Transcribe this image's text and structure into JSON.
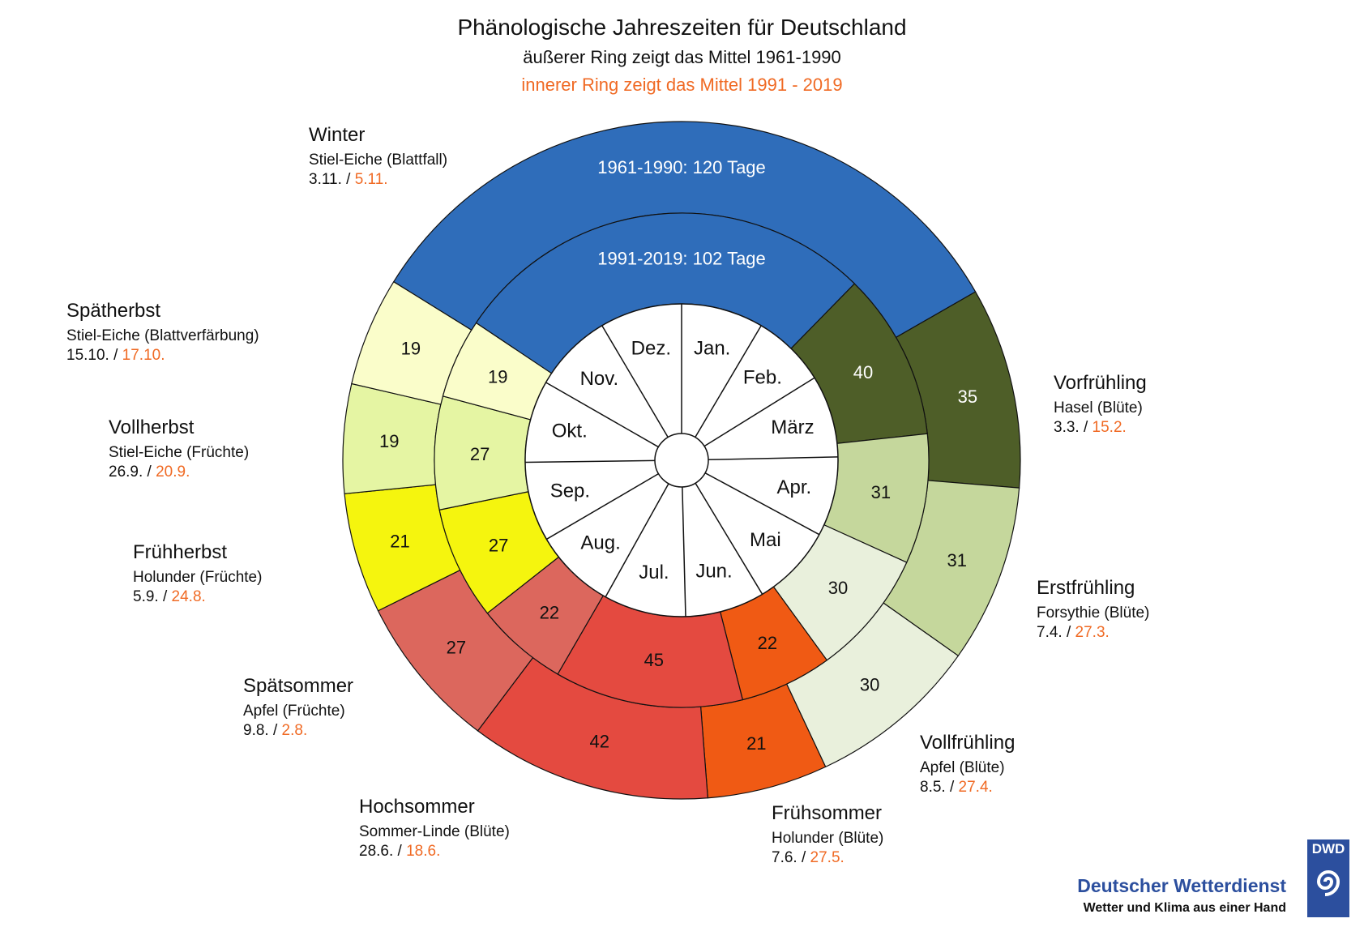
{
  "chart_data": {
    "type": "pie",
    "subtype": "phenological-clock (two concentric rings, clockwise from 1 January at top)",
    "title": "Phänologische Jahreszeiten für Deutschland",
    "subtitle_outer": "äußerer Ring zeigt das Mittel 1961-1990",
    "subtitle_inner": "innerer Ring zeigt das Mittel 1991 - 2019",
    "months": [
      "Jan.",
      "Feb.",
      "März",
      "Apr.",
      "Mai",
      "Jun.",
      "Jul.",
      "Aug.",
      "Sep.",
      "Okt.",
      "Nov.",
      "Dez."
    ],
    "seasons": [
      {
        "name": "Vorfrühling",
        "plant": "Hasel (Blüte)",
        "start_outer": "3.3.",
        "start_inner": "15.2.",
        "days_outer": 35,
        "days_inner": 40,
        "color": "#4e5e28",
        "text_color": "#ffffff"
      },
      {
        "name": "Erstfrühling",
        "plant": "Forsythie (Blüte)",
        "start_outer": "7.4.",
        "start_inner": "27.3.",
        "days_outer": 31,
        "days_inner": 31,
        "color": "#c5d79c",
        "text_color": "#111111"
      },
      {
        "name": "Vollfrühling",
        "plant": "Apfel (Blüte)",
        "start_outer": "8.5.",
        "start_inner": "27.4.",
        "days_outer": 30,
        "days_inner": 30,
        "color": "#e9f0dc",
        "text_color": "#111111"
      },
      {
        "name": "Frühsommer",
        "plant": "Holunder (Blüte)",
        "start_outer": "7.6.",
        "start_inner": "27.5.",
        "days_outer": 21,
        "days_inner": 22,
        "color": "#f05a14",
        "text_color": "#111111"
      },
      {
        "name": "Hochsommer",
        "plant": "Sommer-Linde (Blüte)",
        "start_outer": "28.6.",
        "start_inner": "18.6.",
        "days_outer": 42,
        "days_inner": 45,
        "color": "#e44a40",
        "text_color": "#111111"
      },
      {
        "name": "Spätsommer",
        "plant": "Apfel (Früchte)",
        "start_outer": "9.8.",
        "start_inner": "2.8.",
        "days_outer": 27,
        "days_inner": 22,
        "color": "#dc675d",
        "text_color": "#111111"
      },
      {
        "name": "Frühherbst",
        "plant": "Holunder (Früchte)",
        "start_outer": "5.9.",
        "start_inner": "24.8.",
        "days_outer": 21,
        "days_inner": 27,
        "color": "#f5f50e",
        "text_color": "#111111"
      },
      {
        "name": "Vollherbst",
        "plant": "Stiel-Eiche (Früchte)",
        "start_outer": "26.9.",
        "start_inner": "20.9.",
        "days_outer": 19,
        "days_inner": 27,
        "color": "#e5f5a3",
        "text_color": "#111111"
      },
      {
        "name": "Spätherbst",
        "plant": "Stiel-Eiche (Blattverfärbung)",
        "start_outer": "15.10.",
        "start_inner": "17.10.",
        "days_outer": 19,
        "days_inner": 19,
        "color": "#fafdca",
        "text_color": "#111111"
      },
      {
        "name": "Winter",
        "plant": "Stiel-Eiche (Blattfall)",
        "start_outer": "3.11.",
        "start_inner": "5.11.",
        "days_outer": 120,
        "days_inner": 102,
        "color": "#2f6dba",
        "text_color": "#ffffff",
        "label_outer": "1961-1990: 120 Tage",
        "label_inner": "1991-2019: 102 Tage"
      }
    ],
    "date_separator": " / ",
    "inner_date_color": "#f06a24"
  },
  "logo": {
    "brand": "Deutscher Wetterdienst",
    "tagline": "Wetter und Klima aus einer Hand",
    "mark": "DWD"
  }
}
